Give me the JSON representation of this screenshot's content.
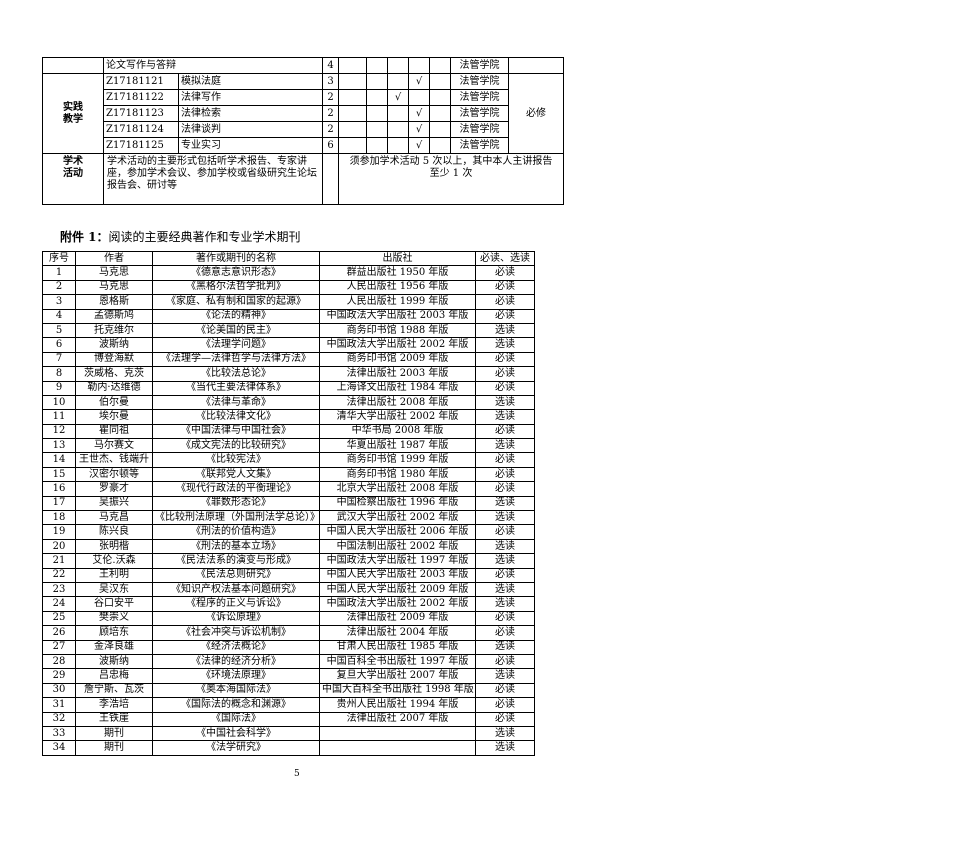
{
  "course_table": {
    "thesis_row": {
      "name": "论文写作与答辩",
      "credits": "4",
      "dept": "法管学院"
    },
    "practice_category": "实践教学",
    "practice_remark": "必修",
    "practice_rows": [
      {
        "code": "Z17181121",
        "name": "模拟法庭",
        "credits": "3",
        "check_col": 3,
        "dept": "法管学院"
      },
      {
        "code": "Z17181122",
        "name": "法律写作",
        "credits": "2",
        "check_col": 2,
        "dept": "法管学院"
      },
      {
        "code": "Z17181123",
        "name": "法律检索",
        "credits": "2",
        "check_col": 3,
        "dept": "法管学院"
      },
      {
        "code": "Z17181124",
        "name": "法律谈判",
        "credits": "2",
        "check_col": 3,
        "dept": "法管学院"
      },
      {
        "code": "Z17181125",
        "name": "专业实习",
        "credits": "6",
        "check_col": 3,
        "dept": "法管学院"
      }
    ],
    "check_mark": "√",
    "academic": {
      "category": "学术活动",
      "description": "学术活动的主要形式包括听学术报告、专家讲座，参加学术会议、参加学校或省级研究生论坛报告会、研讨等",
      "requirement": "须参加学术活动 5 次以上，其中本人主讲报告至少 1 次"
    }
  },
  "attachment": {
    "label": "附件 1：",
    "title": "阅读的主要经典著作和专业学术期刊"
  },
  "reading_table": {
    "headers": [
      "序号",
      "作者",
      "著作或期刊的名称",
      "出版社",
      "必读、选读"
    ],
    "rows": [
      [
        "1",
        "马克思",
        "《德意志意识形态》",
        "群益出版社 1950 年版",
        "必读"
      ],
      [
        "2",
        "马克思",
        "《黑格尔法哲学批判》",
        "人民出版社 1956 年版",
        "必读"
      ],
      [
        "3",
        "恩格斯",
        "《家庭、私有制和国家的起源》",
        "人民出版社 1999 年版",
        "必读"
      ],
      [
        "4",
        "孟德斯鸠",
        "《论法的精神》",
        "中国政法大学出版社 2003 年版",
        "必读"
      ],
      [
        "5",
        "托克维尔",
        "《论美国的民主》",
        "商务印书馆 1988 年版",
        "选读"
      ],
      [
        "6",
        "波斯纳",
        "《法理学问题》",
        "中国政法大学出版社 2002 年版",
        "选读"
      ],
      [
        "7",
        "博登海默",
        "《法理学—法律哲学与法律方法》",
        "商务印书馆 2009 年版",
        "必读"
      ],
      [
        "8",
        "茨威格、克茨",
        "《比较法总论》",
        "法律出版社 2003 年版",
        "必读"
      ],
      [
        "9",
        "勒内·达维德",
        "《当代主要法律体系》",
        "上海译文出版社 1984 年版",
        "必读"
      ],
      [
        "10",
        "伯尔曼",
        "《法律与革命》",
        "法律出版社 2008 年版",
        "选读"
      ],
      [
        "11",
        "埃尔曼",
        "《比较法律文化》",
        "清华大学出版社 2002 年版",
        "选读"
      ],
      [
        "12",
        "瞿同祖",
        "《中国法律与中国社会》",
        "中华书局 2008 年版",
        "必读"
      ],
      [
        "13",
        "马尔赛文",
        "《成文宪法的比较研究》",
        "华夏出版社 1987 年版",
        "选读"
      ],
      [
        "14",
        "王世杰、钱端升",
        "《比较宪法》",
        "商务印书馆 1999 年版",
        "必读"
      ],
      [
        "15",
        "汉密尔顿等",
        "《联邦党人文集》",
        "商务印书馆  1980 年版",
        "必读"
      ],
      [
        "16",
        "罗豪才",
        "《现代行政法的平衡理论》",
        "北京大学出版社   2008 年版",
        "必读"
      ],
      [
        "17",
        "吴振兴",
        "《罪数形态论》",
        "中国检察出版社    1996 年版",
        "选读"
      ],
      [
        "18",
        "马克昌",
        "《比较刑法原理（外国刑法学总论）》",
        "武汉大学出版社   2002 年版",
        "选读"
      ],
      [
        "19",
        "陈兴良",
        "《刑法的价值构造》",
        "中国人民大学出版社 2006 年版",
        "必读"
      ],
      [
        "20",
        "张明楷",
        "《刑法的基本立场》",
        "中国法制出版社   2002 年版",
        "选读"
      ],
      [
        "21",
        "艾伦.沃森",
        "《民法法系的演变与形成》",
        "中国政法大学出版社 1997 年版",
        "选读"
      ],
      [
        "22",
        "王利明",
        "《民法总则研究》",
        "中国人民大学出版社 2003 年版",
        "必读"
      ],
      [
        "23",
        "吴汉东",
        "《知识产权法基本问题研究》",
        "中国人民大学出版社 2009 年版",
        "选读"
      ],
      [
        "24",
        "谷口安平",
        "《程序的正义与诉讼》",
        "中国政法大学出版社 2002 年版",
        "选读"
      ],
      [
        "25",
        "樊崇义",
        "《诉讼原理》",
        "法律出版社   2009 年版",
        "必读"
      ],
      [
        "26",
        "顾培东",
        "《社会冲突与诉讼机制》",
        "法律出版社   2004 年版",
        "必读"
      ],
      [
        "27",
        "金泽良雄",
        "《经济法概论》",
        "甘肃人民出版社   1985 年版",
        "选读"
      ],
      [
        "28",
        "波斯纳",
        "《法律的经济分析》",
        "中国百科全书出版社 1997 年版",
        "必读"
      ],
      [
        "29",
        "吕忠梅",
        "《环境法原理》",
        "复旦大学出版社   2007 年版",
        "选读"
      ],
      [
        "30",
        "詹宁斯、瓦茨",
        "《奥本海国际法》",
        "中国大百科全书出版社 1998 年版",
        "必读"
      ],
      [
        "31",
        "李浩培",
        "《国际法的概念和渊源》",
        "贵州人民出版社    1994 年版",
        "必读"
      ],
      [
        "32",
        "王铁崖",
        "《国际法》",
        "法律出版社    2007 年版",
        "必读"
      ],
      [
        "33",
        "期刊",
        "《中国社会科学》",
        "",
        "选读"
      ],
      [
        "34",
        "期刊",
        "《法学研究》",
        "",
        "选读"
      ]
    ]
  },
  "page_number": "5"
}
